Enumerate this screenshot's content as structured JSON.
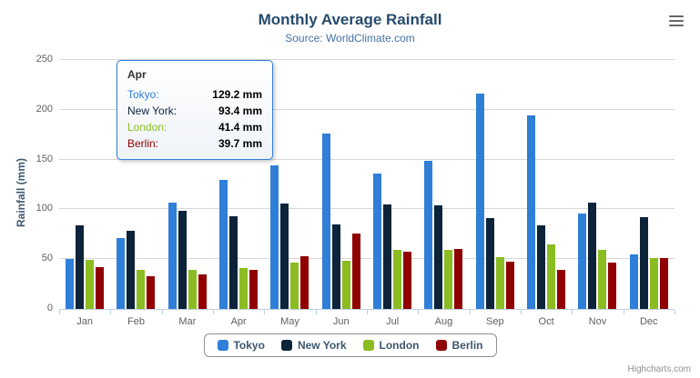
{
  "chart": {
    "title": "Monthly Average Rainfall",
    "subtitle": "Source: WorldClimate.com",
    "credits": "Highcharts.com"
  },
  "chart_data": {
    "type": "bar",
    "title": "Monthly Average Rainfall",
    "subtitle": "Source: WorldClimate.com",
    "categories": [
      "Jan",
      "Feb",
      "Mar",
      "Apr",
      "May",
      "Jun",
      "Jul",
      "Aug",
      "Sep",
      "Oct",
      "Nov",
      "Dec"
    ],
    "series": [
      {
        "name": "Tokyo",
        "color": "#2f7ed8",
        "values": [
          49.9,
          71.5,
          106.4,
          129.2,
          144.0,
          176.0,
          135.6,
          148.5,
          216.4,
          194.1,
          95.6,
          54.4
        ]
      },
      {
        "name": "New York",
        "color": "#0d233a",
        "values": [
          83.6,
          78.8,
          98.5,
          93.4,
          106.0,
          84.5,
          105.0,
          104.3,
          91.2,
          83.5,
          106.6,
          92.3
        ]
      },
      {
        "name": "London",
        "color": "#8bbc21",
        "values": [
          48.9,
          38.8,
          39.3,
          41.4,
          47.0,
          48.3,
          59.0,
          59.6,
          52.4,
          65.2,
          59.3,
          51.2
        ]
      },
      {
        "name": "Berlin",
        "color": "#910000",
        "values": [
          42.4,
          33.2,
          34.5,
          39.7,
          52.6,
          75.5,
          57.4,
          60.4,
          47.6,
          39.1,
          46.8,
          51.1
        ]
      }
    ],
    "xlabel": "",
    "ylabel": "Rainfall (mm)",
    "ylim": [
      0,
      250
    ],
    "ytick_step": 50,
    "grid": true,
    "legend_position": "bottom"
  },
  "tooltip": {
    "category": "Apr",
    "rows": [
      {
        "name": "Tokyo",
        "value": "129.2 mm"
      },
      {
        "name": "New York",
        "value": "93.4 mm"
      },
      {
        "name": "London",
        "value": "41.4 mm"
      },
      {
        "name": "Berlin",
        "value": "39.7 mm"
      }
    ]
  }
}
